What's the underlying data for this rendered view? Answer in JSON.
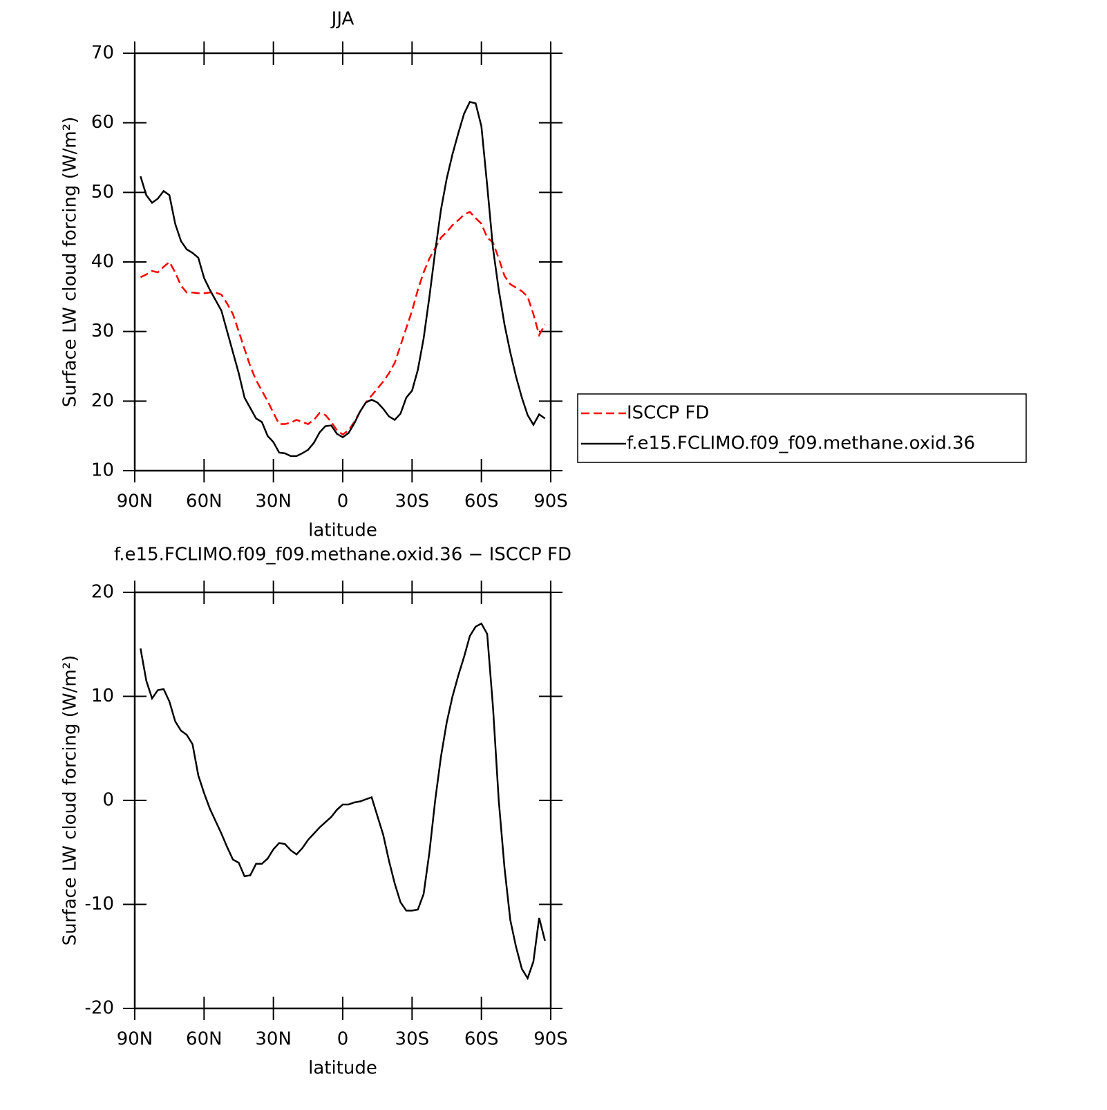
{
  "chart_data": [
    {
      "type": "line",
      "title": "JJA",
      "xlabel": "latitude",
      "ylabel": "Surface LW cloud forcing (W/m²)",
      "x": [
        87.5,
        85,
        82.5,
        80,
        77.5,
        75,
        72.5,
        70,
        67.5,
        65,
        62.5,
        60,
        57.5,
        55,
        52.5,
        50,
        47.5,
        45,
        42.5,
        40,
        37.5,
        35,
        32.5,
        30,
        27.5,
        25,
        22.5,
        20,
        17.5,
        15,
        12.5,
        10,
        7.5,
        5,
        2.5,
        0,
        -2.5,
        -5,
        -7.5,
        -10,
        -12.5,
        -15,
        -17.5,
        -20,
        -22.5,
        -25,
        -27.5,
        -30,
        -32.5,
        -35,
        -37.5,
        -40,
        -42.5,
        -45,
        -47.5,
        -50,
        -52.5,
        -55,
        -57.5,
        -60,
        -62.5,
        -65,
        -67.5,
        -70,
        -72.5,
        -75,
        -77.5,
        -80,
        -82.5,
        -85,
        -87.5
      ],
      "series": [
        {
          "name": "ISCCP FD",
          "color": "#ff0000",
          "dash": true,
          "values": [
            37.8,
            38.2,
            38.7,
            38.5,
            39.3,
            40,
            38.5,
            36.6,
            35.6,
            35.6,
            35.5,
            35.5,
            35.6,
            35.6,
            35.3,
            34,
            32.5,
            30,
            27.5,
            25,
            23,
            21.5,
            20,
            18.3,
            16.7,
            16.7,
            16.9,
            17.3,
            17,
            16.7,
            17.3,
            18.3,
            18,
            17,
            15.8,
            15.2,
            15.8,
            17,
            18.5,
            19.8,
            20.8,
            21.8,
            22.8,
            24,
            25.5,
            28,
            30.5,
            33,
            36,
            38.5,
            40.5,
            42,
            43.5,
            44.3,
            45.3,
            46,
            46.8,
            47.2,
            46.3,
            45.5,
            43.5,
            42.8,
            40.5,
            38,
            36.8,
            36.3,
            35.8,
            35,
            32.5,
            29.5,
            31
          ]
        },
        {
          "name": "f.e15.FCLIMO.f09_f09.methane.oxid.36",
          "color": "#000000",
          "dash": false,
          "values": [
            52.3,
            49.6,
            48.5,
            49.1,
            50.2,
            49.6,
            45.5,
            43,
            41.8,
            41.3,
            40.6,
            37.7,
            36,
            34.5,
            33,
            30,
            27,
            24,
            20.5,
            19,
            17.5,
            17,
            15,
            14.1,
            12.6,
            12.5,
            12.1,
            12.1,
            12.5,
            13,
            14,
            15.5,
            16.4,
            16.5,
            15.3,
            14.8,
            15.4,
            16.8,
            18.5,
            19.8,
            20.2,
            19.8,
            18.9,
            17.8,
            17.3,
            18.2,
            20.5,
            21.5,
            24.5,
            29,
            35,
            41.5,
            47.5,
            52,
            55.5,
            58.5,
            61.3,
            63,
            62.8,
            59.5,
            51,
            42,
            36,
            31,
            27,
            23.5,
            20.5,
            18,
            16.6,
            18.1,
            17.5
          ]
        }
      ],
      "xlim": [
        90,
        -90
      ],
      "xticks": [
        {
          "value": 90,
          "label": "90N"
        },
        {
          "value": 60,
          "label": "60N"
        },
        {
          "value": 30,
          "label": "30N"
        },
        0,
        {
          "value": -30,
          "label": "30S"
        },
        {
          "value": -60,
          "label": "60S"
        },
        {
          "value": -90,
          "label": "90S"
        }
      ],
      "ylim": [
        10,
        70
      ],
      "yticks": [
        10,
        20,
        30,
        40,
        50,
        60,
        70
      ],
      "legend": "right"
    },
    {
      "type": "line",
      "title": "f.e15.FCLIMO.f09_f09.methane.oxid.36 − ISCCP FD",
      "xlabel": "latitude",
      "ylabel": "Surface LW cloud forcing (W/m²)",
      "x": [
        87.5,
        85,
        82.5,
        80,
        77.5,
        75,
        72.5,
        70,
        67.5,
        65,
        62.5,
        60,
        57.5,
        55,
        52.5,
        50,
        47.5,
        45,
        42.5,
        40,
        37.5,
        35,
        32.5,
        30,
        27.5,
        25,
        22.5,
        20,
        17.5,
        15,
        12.5,
        10,
        7.5,
        5,
        2.5,
        0,
        -2.5,
        -5,
        -7.5,
        -10,
        -12.5,
        -15,
        -17.5,
        -20,
        -22.5,
        -25,
        -27.5,
        -30,
        -32.5,
        -35,
        -37.5,
        -40,
        -42.5,
        -45,
        -47.5,
        -50,
        -52.5,
        -55,
        -57.5,
        -60,
        -62.5,
        -65,
        -67.5,
        -70,
        -72.5,
        -75,
        -77.5,
        -80,
        -82.5,
        -85,
        -87.5
      ],
      "values": [
        14.6,
        11.5,
        9.8,
        10.6,
        10.7,
        9.5,
        7.6,
        6.7,
        6.3,
        5.4,
        2.4,
        0.7,
        -0.8,
        -2,
        -3.2,
        -4.5,
        -5.7,
        -6,
        -7.3,
        -7.2,
        -6.1,
        -6.1,
        -5.6,
        -4.7,
        -4.1,
        -4.2,
        -4.8,
        -5.2,
        -4.6,
        -3.8,
        -3.2,
        -2.6,
        -2.1,
        -1.6,
        -0.9,
        -0.4,
        -0.4,
        -0.2,
        -0.1,
        0.1,
        0.3,
        -1.5,
        -3.3,
        -5.8,
        -8,
        -9.8,
        -10.6,
        -10.6,
        -10.5,
        -9,
        -5,
        0,
        4.2,
        7.5,
        10,
        12,
        13.8,
        15.8,
        16.7,
        17,
        16,
        9,
        0,
        -6.5,
        -11.5,
        -14.1,
        -16.2,
        -17.1,
        -15.5,
        -11.3,
        -13.5
      ],
      "color": "#000000",
      "xlim": [
        90,
        -90
      ],
      "xticks": [
        {
          "value": 90,
          "label": "90N"
        },
        {
          "value": 60,
          "label": "60N"
        },
        {
          "value": 30,
          "label": "30N"
        },
        0,
        {
          "value": -30,
          "label": "30S"
        },
        {
          "value": -60,
          "label": "60S"
        },
        {
          "value": -90,
          "label": "90S"
        }
      ],
      "ylim": [
        -20,
        20
      ],
      "yticks": [
        -20,
        -10,
        0,
        10,
        20
      ]
    }
  ]
}
